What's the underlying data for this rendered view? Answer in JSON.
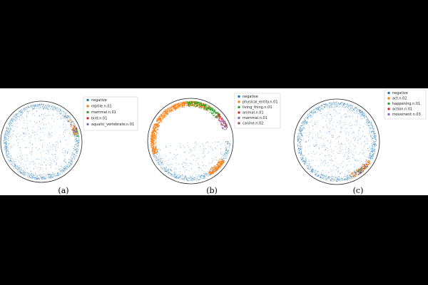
{
  "figure": {
    "captions": [
      "(a)",
      "(b)",
      "(c)"
    ]
  },
  "chart_data": [
    {
      "type": "scatter",
      "panel": "(a)",
      "title": "",
      "xlabel": "",
      "ylabel": "",
      "xlim": [
        -1,
        1
      ],
      "ylim": [
        -1,
        1
      ],
      "grid": false,
      "legend_position": "right",
      "boundary": "unit disk",
      "series": [
        {
          "name": "negative",
          "color": "#1f77b4",
          "arc_deg": [
            [
              0,
              360
            ]
          ],
          "count": 1500
        },
        {
          "name": "reptile.n.01",
          "color": "#ff7f0e",
          "arc_deg": [
            [
              12,
              38
            ]
          ],
          "count": 40
        },
        {
          "name": "mammal.n.01",
          "color": "#2ca02c",
          "arc_deg": [
            [
              8,
              22
            ]
          ],
          "count": 25
        },
        {
          "name": "bird.n.01",
          "color": "#d62728",
          "arc_deg": [
            [
              18,
              26
            ]
          ],
          "count": 8
        },
        {
          "name": "aquatic_vertebrate.n.01",
          "color": "#9467bd",
          "arc_deg": [
            [
              14,
              20
            ]
          ],
          "count": 8
        }
      ]
    },
    {
      "type": "scatter",
      "panel": "(b)",
      "title": "",
      "xlabel": "",
      "ylabel": "",
      "xlim": [
        -1,
        1
      ],
      "ylim": [
        -1,
        1
      ],
      "grid": false,
      "legend_position": "right",
      "boundary": "unit disk",
      "series": [
        {
          "name": "negative",
          "color": "#1f77b4",
          "arc_deg": [
            [
              190,
              360
            ]
          ],
          "count": 700
        },
        {
          "name": "physical_entity.n.01",
          "color": "#ff7f0e",
          "arc_deg": [
            [
              60,
              200
            ],
            [
              300,
              330
            ]
          ],
          "count": 950
        },
        {
          "name": "living_thing.n.01",
          "color": "#2ca02c",
          "arc_deg": [
            [
              40,
              95
            ]
          ],
          "count": 220
        },
        {
          "name": "animal.n.01",
          "color": "#d62728",
          "arc_deg": [
            [
              22,
              45
            ]
          ],
          "count": 60
        },
        {
          "name": "mammal.n.01",
          "color": "#9467bd",
          "arc_deg": [
            [
              18,
              35
            ]
          ],
          "count": 40
        },
        {
          "name": "canine.n.02",
          "color": "#8c564b",
          "arc_deg": [
            [
              20,
              30
            ]
          ],
          "count": 15
        }
      ]
    },
    {
      "type": "scatter",
      "panel": "(c)",
      "title": "",
      "xlabel": "",
      "ylabel": "",
      "xlim": [
        -1,
        1
      ],
      "ylim": [
        -1,
        1
      ],
      "grid": false,
      "legend_position": "top-right",
      "boundary": "unit disk",
      "series": [
        {
          "name": "negative",
          "color": "#1f77b4",
          "arc_deg": [
            [
              0,
              360
            ]
          ],
          "count": 1700
        },
        {
          "name": "act.n.02",
          "color": "#ff7f0e",
          "arc_deg": [
            [
              290,
              330
            ]
          ],
          "count": 70
        },
        {
          "name": "happening.n.01",
          "color": "#2ca02c",
          "arc_deg": [
            [
              300,
              320
            ]
          ],
          "count": 20
        },
        {
          "name": "action.n.01",
          "color": "#d62728",
          "arc_deg": [
            [
              300,
              325
            ]
          ],
          "count": 25
        },
        {
          "name": "movement.n.03",
          "color": "#9467bd",
          "arc_deg": [
            [
              305,
              320
            ]
          ],
          "count": 10
        }
      ]
    }
  ]
}
